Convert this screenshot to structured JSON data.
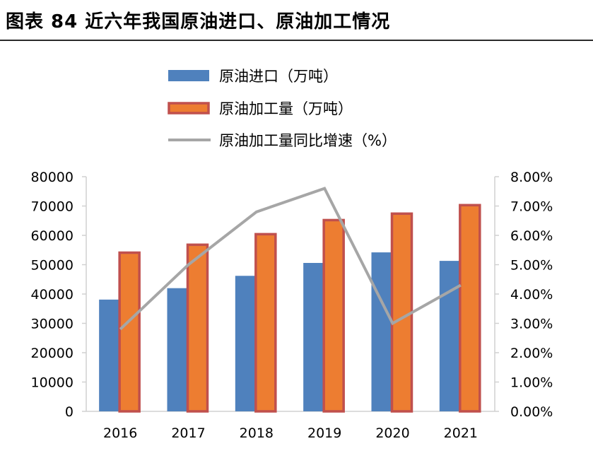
{
  "title": "图表 84 近六年我国原油进口、原油加工情况",
  "chart_data": {
    "type": "bar",
    "categories": [
      "2016",
      "2017",
      "2018",
      "2019",
      "2020",
      "2021"
    ],
    "series": [
      {
        "name": "原油进口（万吨）",
        "kind": "bar",
        "axis": "left",
        "color": "#4f81bd",
        "values": [
          38100,
          42000,
          46200,
          50600,
          54200,
          51300
        ]
      },
      {
        "name": "原油加工量（万吨）",
        "kind": "bar",
        "axis": "left",
        "color": "#ed7d31",
        "stroke": "#c0504d",
        "values": [
          54100,
          56800,
          60400,
          65200,
          67400,
          70300
        ]
      },
      {
        "name": "原油加工量同比增速（%）",
        "kind": "line",
        "axis": "right",
        "color": "#a6a6a6",
        "values": [
          2.8,
          5.0,
          6.8,
          7.6,
          3.0,
          4.3
        ]
      }
    ],
    "left_axis": {
      "min": 0,
      "max": 80000,
      "step": 10000,
      "tick_labels": [
        "0",
        "10000",
        "20000",
        "30000",
        "40000",
        "50000",
        "60000",
        "70000",
        "80000"
      ]
    },
    "right_axis": {
      "min": 0,
      "max": 8,
      "step": 1,
      "tick_labels": [
        "0.00%",
        "1.00%",
        "2.00%",
        "3.00%",
        "4.00%",
        "5.00%",
        "6.00%",
        "7.00%",
        "8.00%"
      ]
    },
    "legend_position": "top-center"
  }
}
